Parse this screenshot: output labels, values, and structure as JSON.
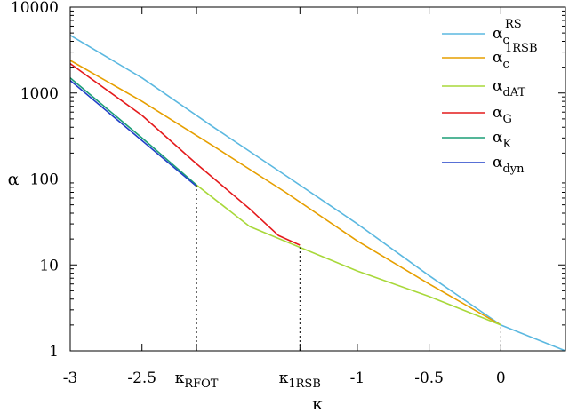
{
  "chart_data": {
    "type": "line",
    "xlabel": "κ",
    "ylabel": "α",
    "xlim": [
      -3,
      0.45
    ],
    "ylim": [
      1,
      10000
    ],
    "yscale": "log",
    "grid": false,
    "legend_position": "top-right",
    "x_ticks": [
      {
        "value": -3,
        "label": "-3"
      },
      {
        "value": -2.5,
        "label": "-2.5"
      },
      {
        "value": -2.12,
        "label": "κ",
        "sub": "RFOT"
      },
      {
        "value": -1.4,
        "label": "κ",
        "sub": "1RSB"
      },
      {
        "value": -1,
        "label": "-1"
      },
      {
        "value": -0.5,
        "label": "-0.5"
      },
      {
        "value": 0,
        "label": "0"
      }
    ],
    "y_ticks": [
      {
        "value": 1,
        "label": "1"
      },
      {
        "value": 10,
        "label": "10"
      },
      {
        "value": 100,
        "label": "100"
      },
      {
        "value": 1000,
        "label": "1000"
      },
      {
        "value": 10000,
        "label": "10000"
      }
    ],
    "vlines": [
      {
        "x": -2.12,
        "y_top": 85
      },
      {
        "x": -1.4,
        "y_top": 16
      },
      {
        "x": 0,
        "y_top": 2
      }
    ],
    "series": [
      {
        "name": "α",
        "sub": "c",
        "sup": "RS",
        "color": "#5bb8e0",
        "x": [
          -3,
          -2.5,
          -2,
          -1.5,
          -1,
          -0.5,
          0,
          0.45
        ],
        "y": [
          4700,
          1500,
          400,
          110,
          30,
          7.5,
          2,
          1
        ]
      },
      {
        "name": "α",
        "sub": "c",
        "sup": "1RSB",
        "color": "#e69f00",
        "x": [
          -3,
          -2.5,
          -2,
          -1.5,
          -1,
          -0.5,
          0
        ],
        "y": [
          2400,
          800,
          240,
          70,
          19,
          6,
          2
        ]
      },
      {
        "name": "α",
        "sub": "dAT",
        "sup": "",
        "color": "#a8d83a",
        "x": [
          -2.12,
          -1.75,
          -1.4,
          -1,
          -0.5,
          0
        ],
        "y": [
          85,
          28,
          16,
          8.5,
          4.3,
          2
        ]
      },
      {
        "name": "α",
        "sub": "G",
        "sup": "",
        "color": "#e41a1c",
        "x": [
          -3,
          -2.5,
          -2.12,
          -1.75,
          -1.55,
          -1.4
        ],
        "y": [
          2200,
          550,
          150,
          45,
          22,
          17
        ]
      },
      {
        "name": "α",
        "sub": "K",
        "sup": "",
        "color": "#1b9e77",
        "x": [
          -3,
          -2.5,
          -2.12
        ],
        "y": [
          1500,
          300,
          85
        ]
      },
      {
        "name": "α",
        "sub": "dyn",
        "sup": "",
        "color": "#2140c8",
        "x": [
          -3,
          -2.5,
          -2.12
        ],
        "y": [
          1400,
          280,
          82
        ]
      }
    ]
  }
}
